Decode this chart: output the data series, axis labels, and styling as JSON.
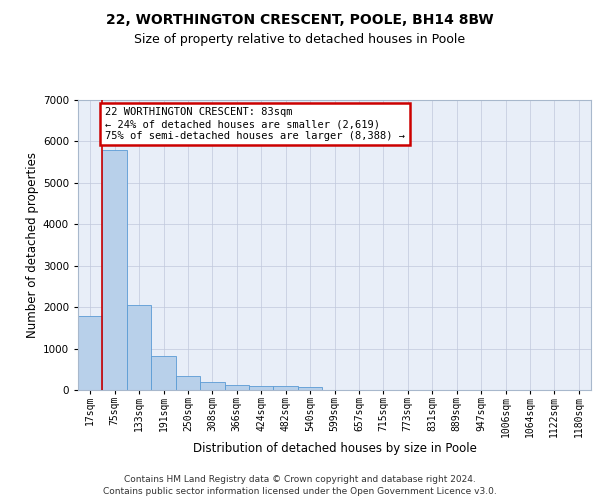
{
  "title1": "22, WORTHINGTON CRESCENT, POOLE, BH14 8BW",
  "title2": "Size of property relative to detached houses in Poole",
  "xlabel": "Distribution of detached houses by size in Poole",
  "ylabel": "Number of detached properties",
  "bin_labels": [
    "17sqm",
    "75sqm",
    "133sqm",
    "191sqm",
    "250sqm",
    "308sqm",
    "366sqm",
    "424sqm",
    "482sqm",
    "540sqm",
    "599sqm",
    "657sqm",
    "715sqm",
    "773sqm",
    "831sqm",
    "889sqm",
    "947sqm",
    "1006sqm",
    "1064sqm",
    "1122sqm",
    "1180sqm"
  ],
  "bar_heights": [
    1780,
    5790,
    2060,
    820,
    340,
    185,
    115,
    100,
    95,
    70,
    0,
    0,
    0,
    0,
    0,
    0,
    0,
    0,
    0,
    0,
    0
  ],
  "bar_color": "#b8d0ea",
  "bar_edge_color": "#5b9bd5",
  "property_vline_color": "#cc0000",
  "annotation_line1": "22 WORTHINGTON CRESCENT: 83sqm",
  "annotation_line2": "← 24% of detached houses are smaller (2,619)",
  "annotation_line3": "75% of semi-detached houses are larger (8,388) →",
  "annotation_box_edge_color": "#cc0000",
  "ylim": [
    0,
    7000
  ],
  "footer1": "Contains HM Land Registry data © Crown copyright and database right 2024.",
  "footer2": "Contains public sector information licensed under the Open Government Licence v3.0.",
  "bg_color": "#e8eef8",
  "title_fontsize": 10,
  "subtitle_fontsize": 9,
  "axis_label_fontsize": 8.5,
  "tick_fontsize": 7,
  "footer_fontsize": 6.5
}
